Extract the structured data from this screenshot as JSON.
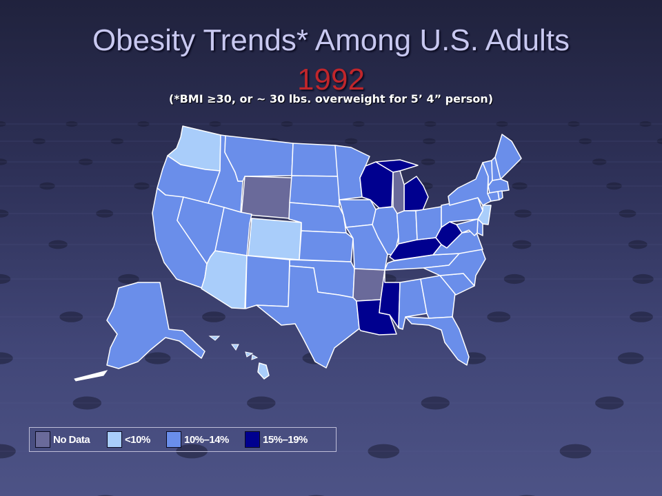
{
  "title": {
    "line1": "Obesity Trends* Among U.S. Adults",
    "year": "1992",
    "subtitle": "(*BMI ≥30, or ~ 30 lbs. overweight for 5’ 4” person)"
  },
  "legend": [
    {
      "key": "nodata",
      "label": "No Data",
      "color": "#6a6a9a"
    },
    {
      "key": "lt10",
      "label": "<10%",
      "color": "#a9cdfa"
    },
    {
      "key": "b10_14",
      "label": "10%–14%",
      "color": "#6a8eea"
    },
    {
      "key": "b15_19",
      "label": "15%–19%",
      "color": "#00008f"
    }
  ],
  "colors": {
    "nodata": "#6a6a9a",
    "lt10": "#a9cdfa",
    "b10_14": "#6a8eea",
    "b15_19": "#00008f",
    "border": "#ffffff",
    "title_text": "#c8c8f0",
    "year_text": "#c0262b"
  },
  "map": {
    "states": [
      {
        "name": "WA",
        "category": "lt10"
      },
      {
        "name": "OR",
        "category": "b10_14"
      },
      {
        "name": "CA",
        "category": "b10_14"
      },
      {
        "name": "ID",
        "category": "b10_14"
      },
      {
        "name": "NV",
        "category": "b10_14"
      },
      {
        "name": "MT",
        "category": "b10_14"
      },
      {
        "name": "WY",
        "category": "nodata"
      },
      {
        "name": "UT",
        "category": "b10_14"
      },
      {
        "name": "CO",
        "category": "lt10"
      },
      {
        "name": "AZ",
        "category": "lt10"
      },
      {
        "name": "NM",
        "category": "b10_14"
      },
      {
        "name": "ND",
        "category": "b10_14"
      },
      {
        "name": "SD",
        "category": "b10_14"
      },
      {
        "name": "NE",
        "category": "b10_14"
      },
      {
        "name": "KS",
        "category": "b10_14"
      },
      {
        "name": "OK",
        "category": "b10_14"
      },
      {
        "name": "TX",
        "category": "b10_14"
      },
      {
        "name": "MN",
        "category": "b10_14"
      },
      {
        "name": "IA",
        "category": "b10_14"
      },
      {
        "name": "MO",
        "category": "b10_14"
      },
      {
        "name": "AR",
        "category": "nodata"
      },
      {
        "name": "LA",
        "category": "b15_19"
      },
      {
        "name": "WI",
        "category": "b15_19"
      },
      {
        "name": "IL",
        "category": "b10_14"
      },
      {
        "name": "MS",
        "category": "b15_19"
      },
      {
        "name": "MI-UP",
        "category": "b15_19"
      },
      {
        "name": "MI",
        "category": "b15_19"
      },
      {
        "name": "IN",
        "category": "b10_14"
      },
      {
        "name": "KY",
        "category": "b15_19"
      },
      {
        "name": "TN",
        "category": "b10_14"
      },
      {
        "name": "AL",
        "category": "b10_14"
      },
      {
        "name": "OH",
        "category": "b10_14"
      },
      {
        "name": "WV",
        "category": "b15_19"
      },
      {
        "name": "GA",
        "category": "b10_14"
      },
      {
        "name": "FL",
        "category": "b10_14"
      },
      {
        "name": "SC",
        "category": "b10_14"
      },
      {
        "name": "NC",
        "category": "b10_14"
      },
      {
        "name": "VA",
        "category": "b10_14"
      },
      {
        "name": "PA",
        "category": "b10_14"
      },
      {
        "name": "NY",
        "category": "b10_14"
      },
      {
        "name": "NJ",
        "category": "lt10"
      },
      {
        "name": "DE",
        "category": "b10_14"
      },
      {
        "name": "MD",
        "category": "b10_14"
      },
      {
        "name": "VT",
        "category": "b10_14"
      },
      {
        "name": "NH",
        "category": "b10_14"
      },
      {
        "name": "ME",
        "category": "b10_14"
      },
      {
        "name": "MA",
        "category": "b10_14"
      },
      {
        "name": "CT",
        "category": "b10_14"
      },
      {
        "name": "RI",
        "category": "b10_14"
      },
      {
        "name": "AK",
        "category": "b10_14"
      },
      {
        "name": "HI",
        "category": "lt10"
      },
      {
        "name": "Lake Michigan",
        "category": "nodata"
      }
    ]
  }
}
